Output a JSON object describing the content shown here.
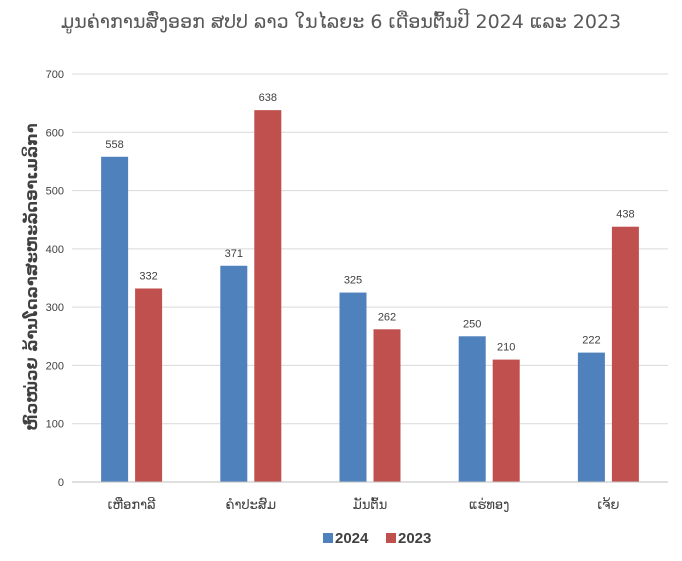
{
  "chart_data": {
    "type": "bar",
    "title": "ມູນຄ່າການສົ່ງອອກ ສປປ ລາວ ໃນໄລຍະ 6 ເດືອນຕົ້ນປີ 2024 ແລະ 2023",
    "xlabel": "",
    "ylabel": "ຫົວໜ່ວຍ ລ້ານໂດລາສະຫະລັດອາເມລິກາ",
    "categories": [
      "ເຫືອກາລີ",
      "ຄຳປະສົມ",
      "ມັນຕົ້ນ",
      "ແຮ່ທອງ",
      "ເຈ້ຍ"
    ],
    "series": [
      {
        "name": "2024",
        "color": "#4f81bd",
        "values": [
          558,
          371,
          325,
          250,
          222
        ]
      },
      {
        "name": "2023",
        "color": "#c0504d",
        "values": [
          332,
          638,
          262,
          210,
          438
        ]
      }
    ],
    "ylim": [
      0,
      700
    ],
    "yticks": [
      0,
      100,
      200,
      300,
      400,
      500,
      600,
      700
    ],
    "grid": true,
    "legend": "bottom"
  }
}
